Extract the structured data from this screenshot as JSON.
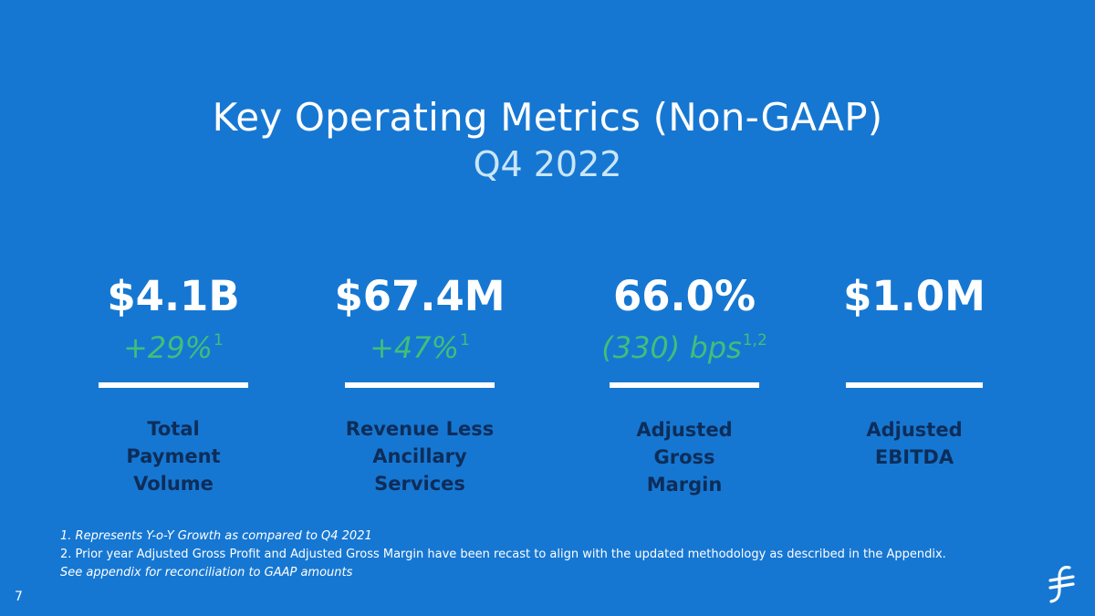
{
  "header": {
    "title": "Key Operating Metrics (Non-GAAP)",
    "subtitle": "Q4 2022"
  },
  "metrics": [
    {
      "value": "$4.1B",
      "growth": "+29%",
      "growth_note": "1",
      "label_lines": [
        "Total",
        "Payment",
        "Volume"
      ]
    },
    {
      "value": "$67.4M",
      "growth": "+47%",
      "growth_note": "1",
      "label_lines": [
        "Revenue Less",
        "Ancillary",
        "Services"
      ]
    },
    {
      "value": "66.0%",
      "growth": "(330) bps",
      "growth_note": "1,2",
      "label_lines": [
        "Adjusted",
        "Gross",
        "Margin"
      ]
    },
    {
      "value": "$1.0M",
      "growth": "",
      "growth_note": "",
      "label_lines": [
        "Adjusted",
        "EBITDA"
      ]
    }
  ],
  "footnotes": [
    "1. Represents Y-o-Y Growth as compared to Q4 2021",
    "2. Prior year Adjusted Gross Profit and Adjusted Gross Margin have been recast to align with the updated methodology as described in the Appendix.",
    "See appendix for reconciliation to GAAP amounts"
  ],
  "page_number": "7",
  "logo_icon": "flywire-f-logo-icon",
  "colors": {
    "background": "#1677D2",
    "subtitle": "#C9E6F7",
    "growth": "#3FBF7A",
    "label": "#0D2D59"
  }
}
